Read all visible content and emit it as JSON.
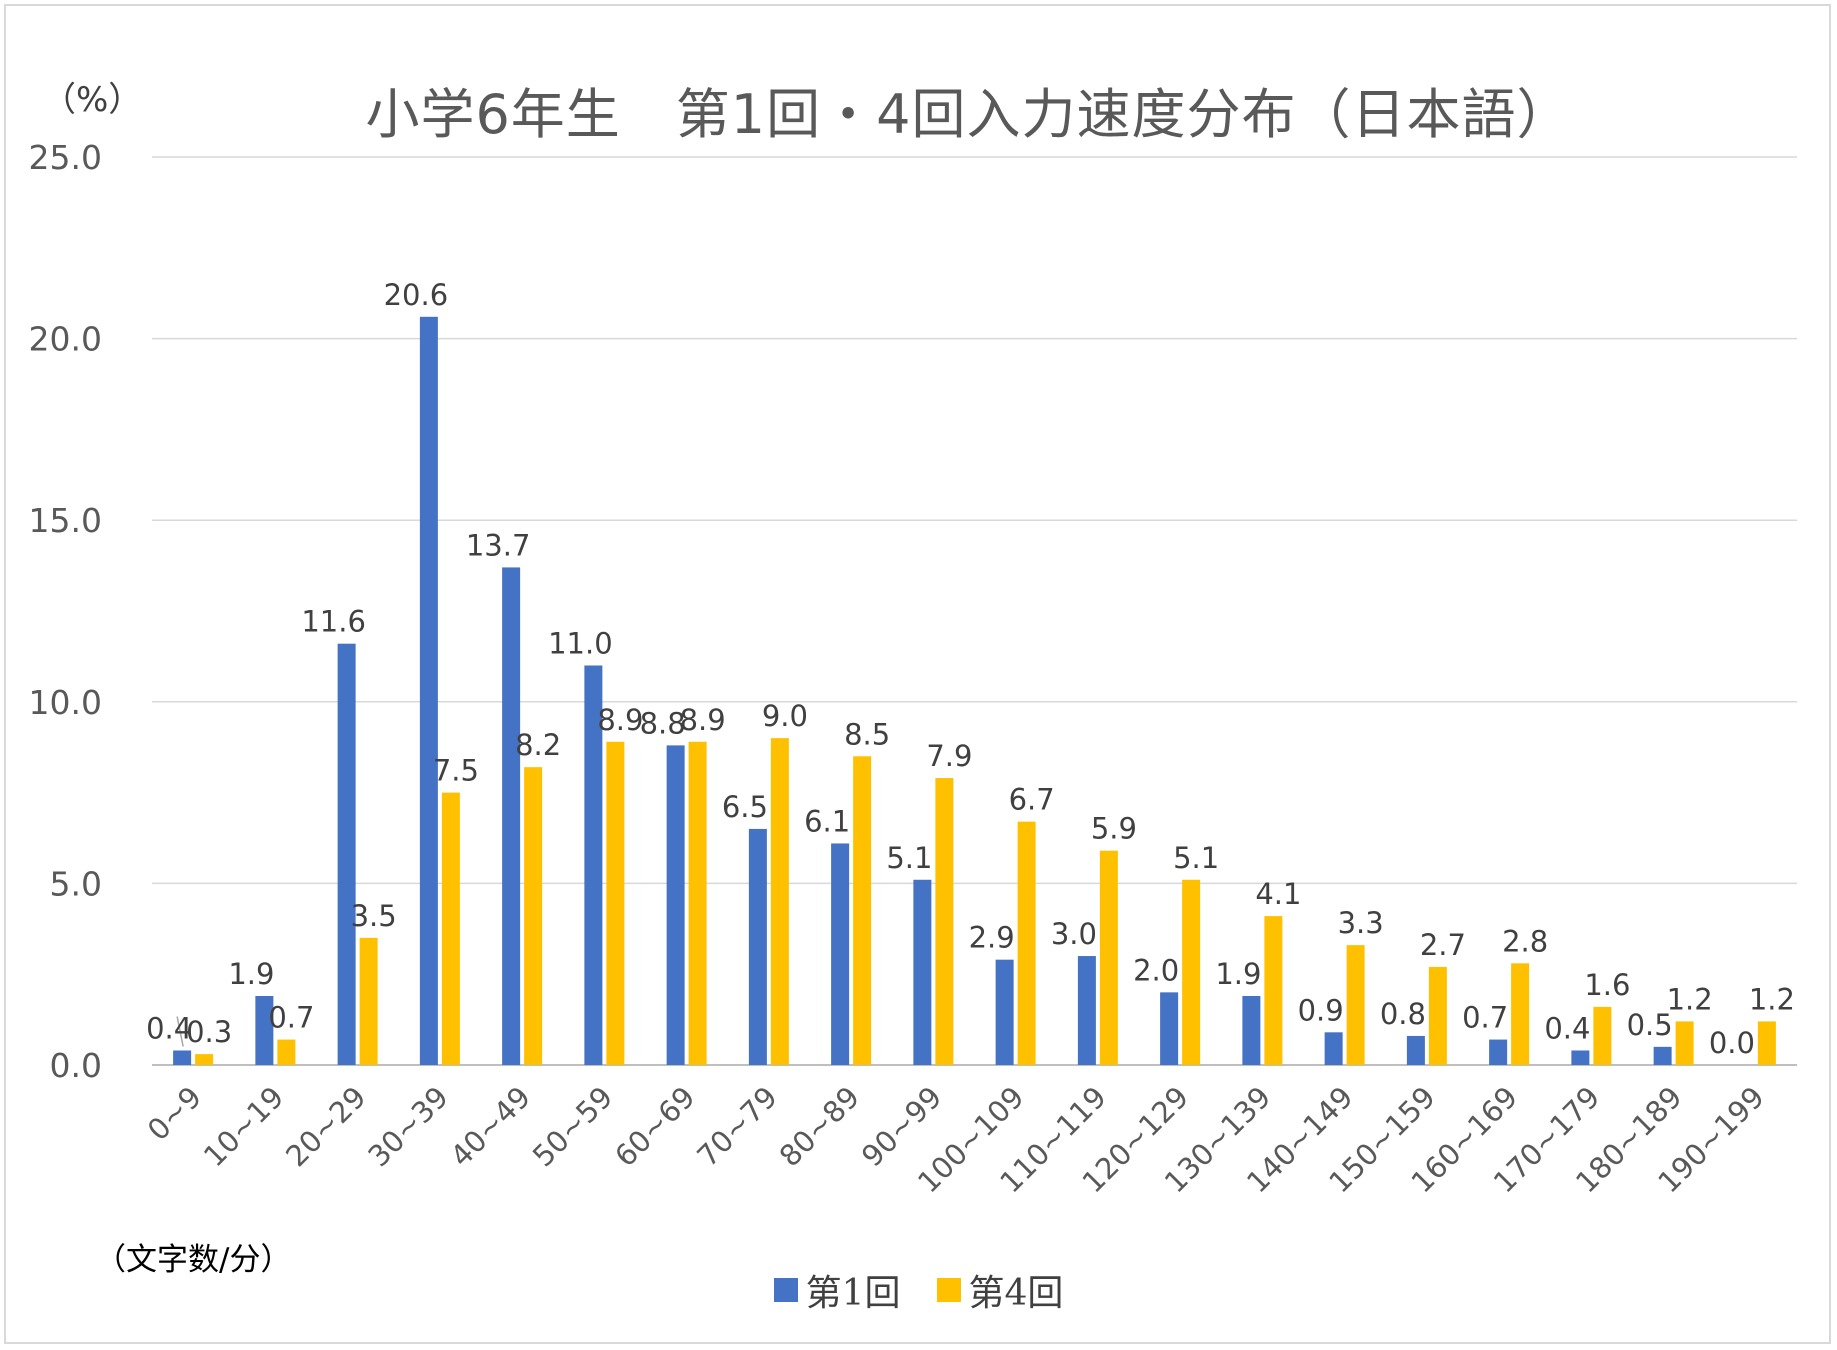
{
  "chart_data": {
    "type": "bar",
    "title": "小学6年生　第1回・4回入力速度分布（日本語）",
    "ylabel": "（%）",
    "xlabel": "（文字数/分）",
    "ylim": [
      0,
      25
    ],
    "yticks": [
      "0.0",
      "5.0",
      "10.0",
      "15.0",
      "20.0",
      "25.0"
    ],
    "grid": true,
    "legend_position": "bottom",
    "categories": [
      "0~9",
      "10~19",
      "20~29",
      "30~39",
      "40~49",
      "50~59",
      "60~69",
      "70~79",
      "80~89",
      "90~99",
      "100~109",
      "110~119",
      "120~129",
      "130~139",
      "140~149",
      "150~159",
      "160~169",
      "170~179",
      "180~189",
      "190~199"
    ],
    "series": [
      {
        "name": "第1回",
        "color": "#4472C4",
        "values": [
          0.4,
          1.9,
          11.6,
          20.6,
          13.7,
          11.0,
          8.8,
          6.5,
          6.1,
          5.1,
          2.9,
          3.0,
          2.0,
          1.9,
          0.9,
          0.8,
          0.7,
          0.4,
          0.5,
          0.0
        ],
        "labels": [
          "0.4",
          "1.9",
          "11.6",
          "20.6",
          "13.7",
          "11.0",
          "8.8",
          "6.5",
          "6.1",
          "5.1",
          "2.9",
          "3.0",
          "2.0",
          "1.9",
          "0.9",
          "0.8",
          "0.7",
          "0.4",
          "0.5",
          "0.0"
        ]
      },
      {
        "name": "第4回",
        "color": "#FFC000",
        "values": [
          0.3,
          0.7,
          3.5,
          7.5,
          8.2,
          8.9,
          8.9,
          9.0,
          8.5,
          7.9,
          6.7,
          5.9,
          5.1,
          4.1,
          3.3,
          2.7,
          2.8,
          1.6,
          1.2,
          1.2
        ],
        "labels": [
          "0.3",
          "0.7",
          "3.5",
          "7.5",
          "8.2",
          "8.9",
          "8.9",
          "9.0",
          "8.5",
          "7.9",
          "6.7",
          "5.9",
          "5.1",
          "4.1",
          "3.3",
          "2.7",
          "2.8",
          "1.6",
          "1.2",
          "1.2"
        ]
      }
    ]
  }
}
